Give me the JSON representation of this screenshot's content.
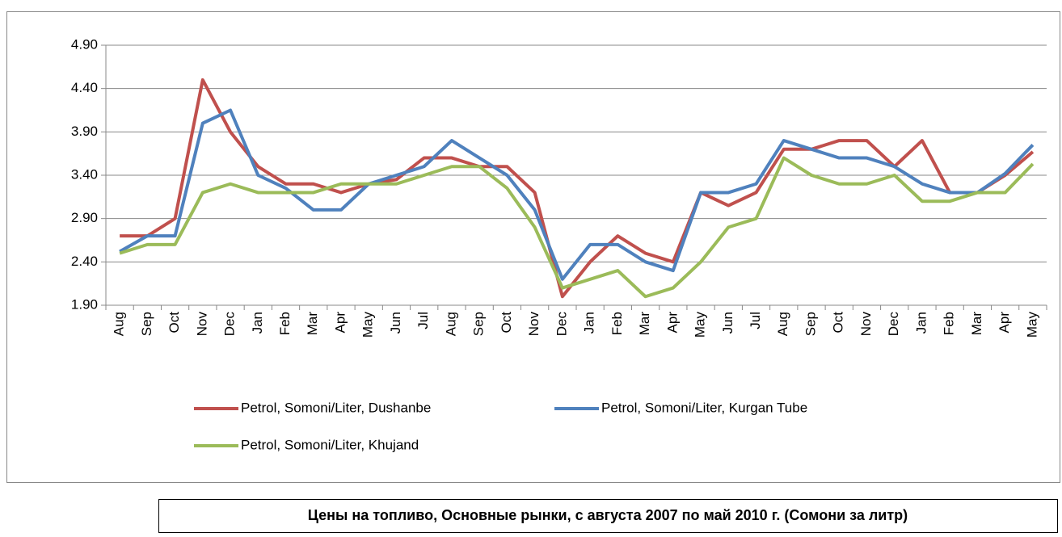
{
  "chart_data": {
    "type": "line",
    "title": "Цены на топливо, Основные рынки, с августа 2007 по май 2010 г. (Сомони за литр)",
    "categories": [
      "Aug",
      "Sep",
      "Oct",
      "Nov",
      "Dec",
      "Jan",
      "Feb",
      "Mar",
      "Apr",
      "May",
      "Jun",
      "Jul",
      "Aug",
      "Sep",
      "Oct",
      "Nov",
      "Dec",
      "Jan",
      "Feb",
      "Mar",
      "Apr",
      "May",
      "Jun",
      "Jul",
      "Aug",
      "Sep",
      "Oct",
      "Nov",
      "Dec",
      "Jan",
      "Feb",
      "Mar",
      "Apr",
      "May"
    ],
    "series": [
      {
        "name": "Petrol, Somoni/Liter, Dushanbe",
        "color": "#c0504d",
        "values": [
          2.7,
          2.7,
          2.9,
          4.5,
          3.9,
          3.5,
          3.3,
          3.3,
          3.2,
          3.3,
          3.35,
          3.6,
          3.6,
          3.5,
          3.5,
          3.2,
          2.0,
          2.4,
          2.7,
          2.5,
          2.4,
          3.2,
          3.05,
          3.2,
          3.7,
          3.7,
          3.8,
          3.8,
          3.5,
          3.8,
          3.2,
          3.2,
          3.4,
          3.67
        ]
      },
      {
        "name": "Petrol, Somoni/Liter, Kurgan Tube",
        "color": "#4f81bd",
        "values": [
          2.52,
          2.7,
          2.7,
          4.0,
          4.15,
          3.4,
          3.25,
          3.0,
          3.0,
          3.3,
          3.4,
          3.5,
          3.8,
          3.6,
          3.4,
          3.0,
          2.2,
          2.6,
          2.6,
          2.4,
          2.3,
          3.2,
          3.2,
          3.3,
          3.8,
          3.7,
          3.6,
          3.6,
          3.5,
          3.3,
          3.2,
          3.2,
          3.42,
          3.75
        ]
      },
      {
        "name": "Petrol, Somoni/Liter, Khujand",
        "color": "#9bbb59",
        "values": [
          2.5,
          2.6,
          2.6,
          3.2,
          3.3,
          3.2,
          3.2,
          3.2,
          3.3,
          3.3,
          3.3,
          3.4,
          3.5,
          3.5,
          3.25,
          2.8,
          2.1,
          2.2,
          2.3,
          2.0,
          2.1,
          2.4,
          2.8,
          2.9,
          3.6,
          3.4,
          3.3,
          3.3,
          3.4,
          3.1,
          3.1,
          3.2,
          3.2,
          3.53
        ]
      }
    ],
    "ylim": [
      1.9,
      4.9
    ],
    "yticks": [
      {
        "value": 1.9,
        "label": "1.90"
      },
      {
        "value": 2.4,
        "label": "2.40"
      },
      {
        "value": 2.9,
        "label": "2.90"
      },
      {
        "value": 3.4,
        "label": "3.40"
      },
      {
        "value": 3.9,
        "label": "3.90"
      },
      {
        "value": 4.4,
        "label": "4.40"
      },
      {
        "value": 4.9,
        "label": "4.90"
      }
    ],
    "grid": true,
    "legend": "bottom"
  }
}
